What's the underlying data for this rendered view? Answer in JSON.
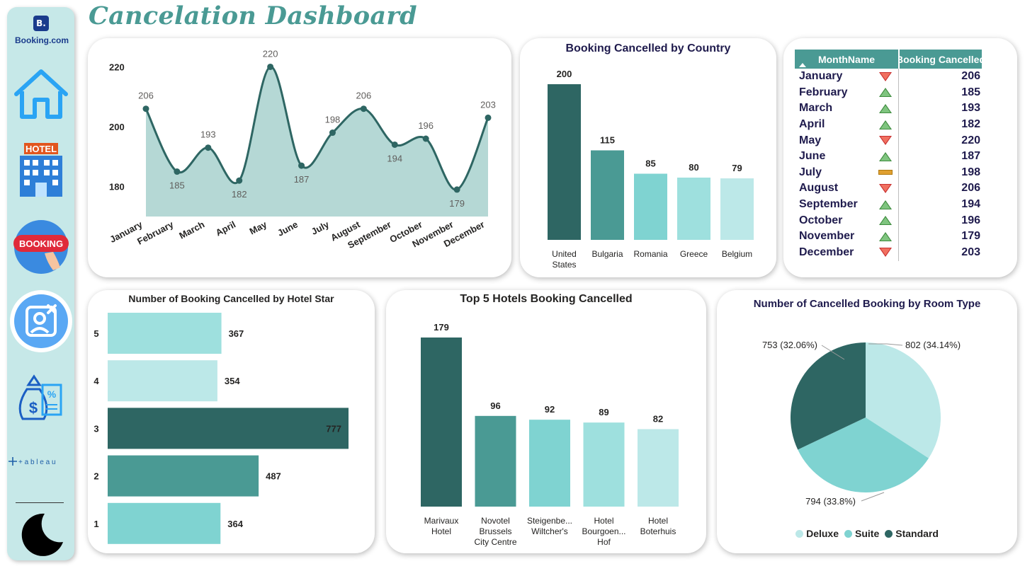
{
  "title": "Cancelation Dashboard",
  "brand": {
    "logo_letter": "B.",
    "logo_text": "Booking.com"
  },
  "sidebar": {
    "icons": [
      "home-icon",
      "hotel-icon",
      "booking-icon",
      "cancelled-user-icon",
      "money-bag-icon",
      "tableau-logo",
      "moon-icon"
    ],
    "hotel_sign": "HOTEL",
    "booking_badge": "BOOKING",
    "tableau_text": "+ a b l e a u"
  },
  "colors": {
    "dark": "#2e6663",
    "mid": "#4a9a94",
    "light": "#7fd3d1",
    "lighter": "#9ee0de",
    "lightest": "#bce8e8",
    "accent_title": "#4a9a94"
  },
  "monthly_chart": {
    "chart_data": {
      "type": "area",
      "categories": [
        "January",
        "February",
        "March",
        "April",
        "May",
        "June",
        "July",
        "August",
        "September",
        "October",
        "November",
        "December"
      ],
      "values": [
        206,
        185,
        193,
        182,
        220,
        187,
        198,
        206,
        194,
        196,
        179,
        203
      ],
      "ylim": [
        170,
        222
      ],
      "yticks": [
        180,
        200,
        220
      ]
    }
  },
  "country_chart": {
    "title": "Booking Cancelled by Country",
    "chart_data": {
      "type": "bar",
      "categories": [
        [
          "United",
          "States"
        ],
        [
          "Bulgaria"
        ],
        [
          "Romania"
        ],
        [
          "Greece"
        ],
        [
          "Belgium"
        ]
      ],
      "values": [
        200,
        115,
        85,
        80,
        79
      ],
      "colors": [
        "#2e6663",
        "#4a9a94",
        "#7fd3d1",
        "#9ee0de",
        "#bce8e8"
      ]
    }
  },
  "month_table": {
    "headers": [
      "MonthName",
      "Booking Cancelled"
    ],
    "rows": [
      {
        "name": "January",
        "value": "206",
        "trend": "down"
      },
      {
        "name": "February",
        "value": "185",
        "trend": "up"
      },
      {
        "name": "March",
        "value": "193",
        "trend": "up"
      },
      {
        "name": "April",
        "value": "182",
        "trend": "up"
      },
      {
        "name": "May",
        "value": "220",
        "trend": "down"
      },
      {
        "name": "June",
        "value": "187",
        "trend": "up"
      },
      {
        "name": "July",
        "value": "198",
        "trend": "flat"
      },
      {
        "name": "August",
        "value": "206",
        "trend": "down"
      },
      {
        "name": "September",
        "value": "194",
        "trend": "up"
      },
      {
        "name": "October",
        "value": "196",
        "trend": "up"
      },
      {
        "name": "November",
        "value": "179",
        "trend": "up"
      },
      {
        "name": "December",
        "value": "203",
        "trend": "down"
      }
    ]
  },
  "star_chart": {
    "title": "Number of Booking Cancelled by Hotel Star",
    "chart_data": {
      "type": "bar",
      "orientation": "horizontal",
      "categories": [
        "5",
        "4",
        "3",
        "2",
        "1"
      ],
      "values": [
        367,
        354,
        777,
        487,
        364
      ],
      "colors": [
        "#9ee0de",
        "#bce8e8",
        "#2e6663",
        "#4a9a94",
        "#7fd3d1"
      ]
    }
  },
  "hotel_chart": {
    "title": "Top 5 Hotels Booking Cancelled",
    "chart_data": {
      "type": "bar",
      "categories": [
        [
          "Marivaux",
          "Hotel"
        ],
        [
          "Novotel",
          "Brussels",
          "City Centre"
        ],
        [
          "Steigenbe...",
          "Wiltcher's"
        ],
        [
          "Hotel",
          "Bourgoen...",
          "Hof"
        ],
        [
          "Hotel",
          "Boterhuis"
        ]
      ],
      "values": [
        179,
        96,
        92,
        89,
        82
      ],
      "colors": [
        "#2e6663",
        "#4a9a94",
        "#7fd3d1",
        "#9ee0de",
        "#bce8e8"
      ]
    }
  },
  "room_chart": {
    "title": "Number of Cancelled Booking by Room Type",
    "chart_data": {
      "type": "pie",
      "slices": [
        {
          "name": "Deluxe",
          "value": 802,
          "label": "802 (34.14%)",
          "color": "#bce8e8"
        },
        {
          "name": "Suite",
          "value": 794,
          "label": "794 (33.8%)",
          "color": "#7fd3d1"
        },
        {
          "name": "Standard",
          "value": 753,
          "label": "753 (32.06%)",
          "color": "#2e6663"
        }
      ]
    }
  }
}
